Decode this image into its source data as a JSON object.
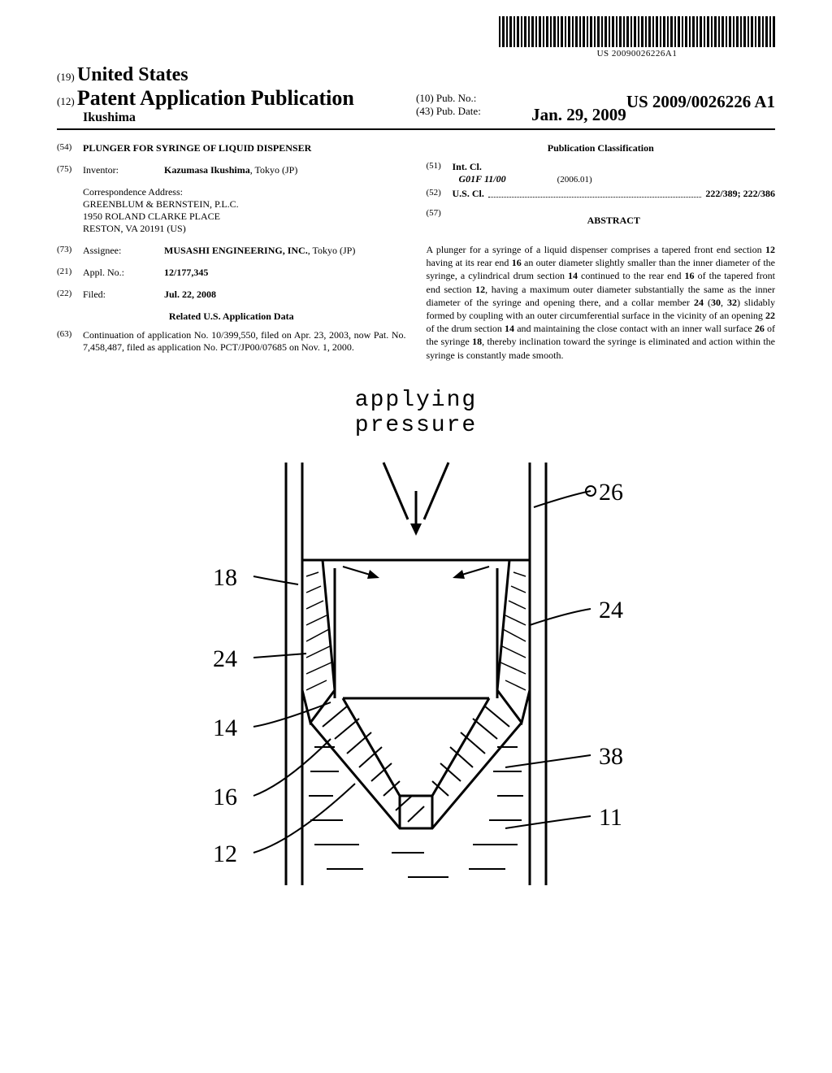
{
  "barcode": {
    "text": "US 20090026226A1"
  },
  "header": {
    "country_code": "(19)",
    "country": "United States",
    "pub_type_code": "(12)",
    "pub_type": "Patent Application Publication",
    "inventor": "Ikushima",
    "pub_no_code": "(10)",
    "pub_no_label": "Pub. No.:",
    "pub_no": "US 2009/0026226 A1",
    "pub_date_code": "(43)",
    "pub_date_label": "Pub. Date:",
    "pub_date": "Jan. 29, 2009"
  },
  "left": {
    "title_code": "(54)",
    "title": "PLUNGER FOR SYRINGE OF LIQUID DISPENSER",
    "inventor_code": "(75)",
    "inventor_label": "Inventor:",
    "inventor_value": "Kazumasa Ikushima",
    "inventor_loc": ", Tokyo (JP)",
    "corr_label": "Correspondence Address:",
    "corr_line1": "GREENBLUM & BERNSTEIN, P.L.C.",
    "corr_line2": "1950 ROLAND CLARKE PLACE",
    "corr_line3": "RESTON, VA 20191 (US)",
    "assignee_code": "(73)",
    "assignee_label": "Assignee:",
    "assignee_value": "MUSASHI ENGINEERING, INC.",
    "assignee_loc": ", Tokyo (JP)",
    "appl_code": "(21)",
    "appl_label": "Appl. No.:",
    "appl_value": "12/177,345",
    "filed_code": "(22)",
    "filed_label": "Filed:",
    "filed_value": "Jul. 22, 2008",
    "related_heading": "Related U.S. Application Data",
    "continuation_code": "(63)",
    "continuation_text": "Continuation of application No. 10/399,550, filed on Apr. 23, 2003, now Pat. No. 7,458,487, filed as application No. PCT/JP00/07685 on Nov. 1, 2000."
  },
  "right": {
    "classification_heading": "Publication Classification",
    "intcl_code": "(51)",
    "intcl_label": "Int. Cl.",
    "intcl_class": "G01F 11/00",
    "intcl_year": "(2006.01)",
    "uscl_code": "(52)",
    "uscl_label": "U.S. Cl.",
    "uscl_value": "222/389; 222/386",
    "abstract_code": "(57)",
    "abstract_heading": "ABSTRACT",
    "abstract_text_parts": [
      "A plunger for a syringe of a liquid dispenser comprises a tapered front end section ",
      "12",
      " having at its rear end ",
      "16",
      " an outer diameter slightly smaller than the inner diameter of the syringe, a cylindrical drum section ",
      "14",
      " continued to the rear end ",
      "16",
      " of the tapered front end section ",
      "12",
      ", having a maximum outer diameter substantially the same as the inner diameter of the syringe and opening there, and a collar member ",
      "24",
      " (",
      "30",
      ", ",
      "32",
      ") slidably formed by coupling with an outer circumferential surface in the vicinity of an opening ",
      "22",
      " of the drum section ",
      "14",
      " and maintaining the close contact with an inner wall surface ",
      "26",
      " of the syringe ",
      "18",
      ", thereby inclination toward the syringe is eliminated and action within the syringe is constantly made smooth."
    ]
  },
  "figure": {
    "title_line1": "applying",
    "title_line2": "pressure",
    "labels": {
      "l18": "18",
      "l24l": "24",
      "l14": "14",
      "l16": "16",
      "l12": "12",
      "l26": "26",
      "l24r": "24",
      "l38": "38",
      "l11": "11"
    }
  }
}
